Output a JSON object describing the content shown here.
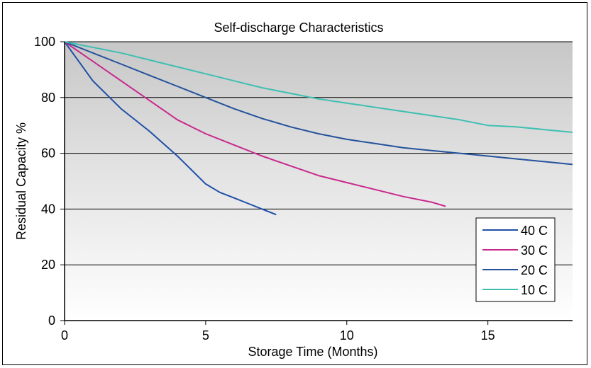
{
  "chart_data": {
    "type": "line",
    "title": "Self-discharge Characteristics",
    "xlabel": "Storage Time (Months)",
    "ylabel": "Residual Capacity %",
    "xlim": [
      0,
      18
    ],
    "ylim": [
      0,
      100
    ],
    "xticks": [
      "0",
      "5",
      "10",
      "15"
    ],
    "yticks": [
      "0",
      "20",
      "40",
      "60",
      "80",
      "100"
    ],
    "grid": "horizontal",
    "legend_position": "bottom-right",
    "series": [
      {
        "name": "40 C",
        "color": "#1f4fa8",
        "x": [
          0,
          0.5,
          1,
          1.5,
          2,
          3,
          4,
          4.5,
          5,
          5.5,
          6,
          6.5,
          7,
          7.5
        ],
        "y": [
          100,
          93,
          86,
          81,
          76,
          68,
          59,
          54,
          49,
          46,
          44,
          42,
          40,
          38
        ]
      },
      {
        "name": "30 C",
        "color": "#c8288c",
        "x": [
          0,
          1,
          2,
          3,
          4,
          5,
          6,
          7,
          8,
          9,
          10,
          11,
          12,
          13,
          13.5
        ],
        "y": [
          100,
          93,
          86,
          79,
          72,
          67,
          63,
          59,
          55.5,
          52,
          49.5,
          47,
          44.5,
          42.5,
          41
        ]
      },
      {
        "name": "20 C",
        "color": "#24529b",
        "x": [
          0,
          1,
          2,
          3,
          4,
          5,
          6,
          7,
          8,
          9,
          10,
          11,
          12,
          13,
          14,
          15,
          16,
          17,
          18
        ],
        "y": [
          100,
          96,
          92,
          88,
          84,
          80,
          76,
          72.5,
          69.5,
          67,
          65,
          63.5,
          62,
          61,
          60,
          59,
          58,
          57,
          56
        ]
      },
      {
        "name": "10 C",
        "color": "#3ebfb2",
        "x": [
          0,
          1,
          2,
          3,
          4,
          5,
          6,
          7,
          8,
          9,
          10,
          11,
          12,
          13,
          14,
          15,
          16,
          17,
          18
        ],
        "y": [
          100,
          98,
          96,
          93.5,
          91,
          88.5,
          86,
          83.5,
          81.5,
          79.5,
          78,
          76.5,
          75,
          73.5,
          72,
          70,
          69.5,
          68.5,
          67.5
        ]
      }
    ]
  }
}
